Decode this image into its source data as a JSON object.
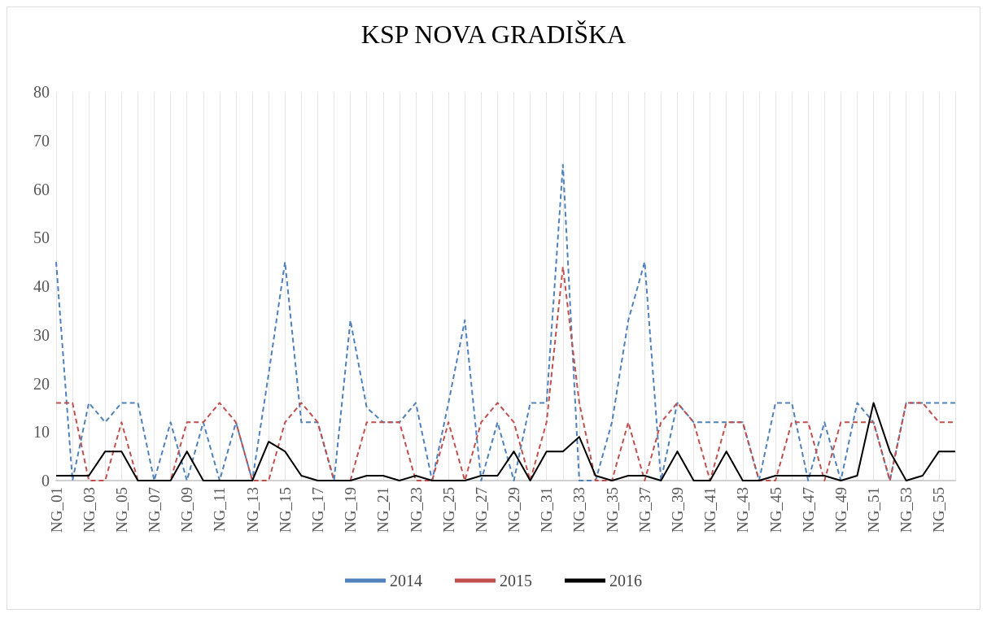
{
  "chart_data": {
    "type": "line",
    "title": "KSP NOVA GRADIŠKA",
    "categories": [
      "NG_01",
      null,
      "NG_03",
      null,
      "NG_05",
      null,
      "NG_07",
      null,
      "NG_09",
      null,
      "NG_11",
      null,
      "NG_13",
      null,
      "NG_15",
      null,
      "NG_17",
      null,
      "NG_19",
      null,
      "NG_21",
      null,
      "NG_23",
      null,
      "NG_25",
      null,
      "NG_27",
      null,
      "NG_29",
      null,
      "NG_31",
      null,
      "NG_33",
      null,
      "NG_35",
      null,
      "NG_37",
      null,
      "NG_39",
      null,
      "NG_41",
      null,
      "NG_43",
      null,
      "NG_45",
      null,
      "NG_47",
      null,
      "NG_49",
      null,
      "NG_51",
      null,
      "NG_53",
      null,
      "NG_55",
      null
    ],
    "series": [
      {
        "name": "2014",
        "color": "#4f81bd",
        "line_style": "dashed",
        "values": [
          45,
          0,
          16,
          12,
          16,
          16,
          0,
          12,
          0,
          12,
          0,
          12,
          0,
          22,
          45,
          12,
          12,
          0,
          33,
          15,
          12,
          12,
          16,
          0,
          16,
          33,
          0,
          12,
          0,
          16,
          16,
          65,
          0,
          0,
          12,
          33,
          45,
          0,
          16,
          12,
          12,
          12,
          12,
          0,
          16,
          16,
          0,
          12,
          0,
          16,
          12,
          0,
          16,
          16,
          16,
          16
        ]
      },
      {
        "name": "2015",
        "color": "#c0504d",
        "line_style": "dashed",
        "values": [
          16,
          16,
          0,
          0,
          12,
          0,
          0,
          0,
          12,
          12,
          16,
          12,
          0,
          0,
          12,
          16,
          12,
          0,
          0,
          12,
          12,
          12,
          0,
          0,
          12,
          0,
          12,
          16,
          12,
          0,
          12,
          44,
          16,
          0,
          0,
          12,
          0,
          12,
          16,
          12,
          0,
          12,
          12,
          0,
          0,
          12,
          12,
          0,
          12,
          12,
          12,
          0,
          16,
          16,
          12,
          12
        ]
      },
      {
        "name": "2016",
        "color": "#000000",
        "line_style": "solid",
        "values": [
          1,
          1,
          1,
          6,
          6,
          0,
          0,
          0,
          6,
          0,
          0,
          0,
          0,
          8,
          6,
          1,
          0,
          0,
          0,
          1,
          1,
          0,
          1,
          0,
          0,
          0,
          1,
          1,
          6,
          0,
          6,
          6,
          9,
          1,
          0,
          1,
          1,
          0,
          6,
          0,
          0,
          6,
          0,
          0,
          1,
          1,
          1,
          1,
          0,
          1,
          16,
          6,
          0,
          1,
          6,
          6
        ]
      }
    ],
    "ylim": [
      0,
      80
    ],
    "yticks": [
      0,
      10,
      20,
      30,
      40,
      50,
      60,
      70,
      80
    ],
    "grid": "x",
    "legend": "bottom",
    "marker": "none"
  }
}
